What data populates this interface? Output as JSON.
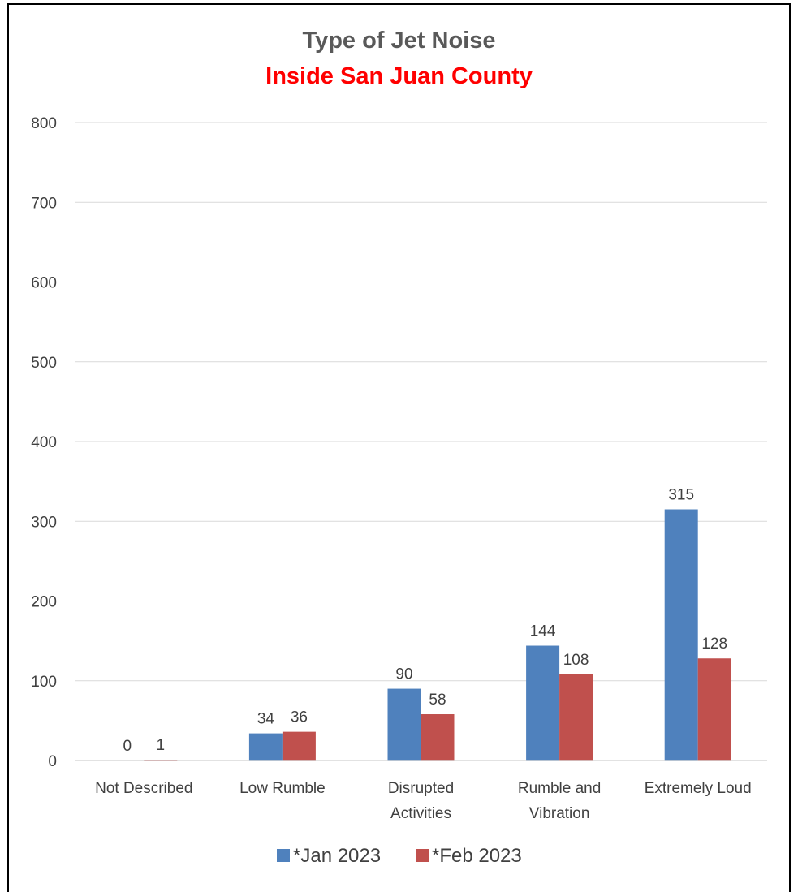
{
  "chart_data": {
    "type": "bar",
    "title": "Type of Jet Noise",
    "subtitle": "Inside San Juan County",
    "categories": [
      [
        "Not Described"
      ],
      [
        "Low Rumble"
      ],
      [
        "Disrupted",
        "Activities"
      ],
      [
        "Rumble and",
        "Vibration"
      ],
      [
        "Extremely Loud"
      ]
    ],
    "series": [
      {
        "name": "*Jan 2023",
        "color": "#4f81bd",
        "values": [
          0,
          34,
          90,
          144,
          315
        ]
      },
      {
        "name": "*Feb 2023",
        "color": "#c0504d",
        "values": [
          1,
          36,
          58,
          108,
          128
        ]
      }
    ],
    "ylim": [
      0,
      800
    ],
    "yticks": [
      0,
      100,
      200,
      300,
      400,
      500,
      600,
      700,
      800
    ],
    "grid": true,
    "data_labels": true,
    "legend": "bottom",
    "title_color": "#595959",
    "subtitle_color": "#ff0000"
  }
}
